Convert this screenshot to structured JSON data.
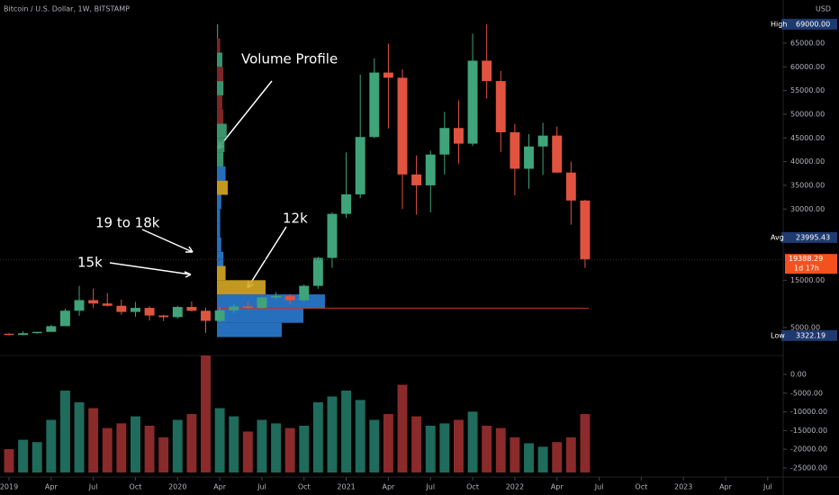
{
  "chart_data": {
    "type": "candlestick",
    "title": "Bitcoin / U.S. Dollar, 1W, BITSTAMP",
    "currency": "USD",
    "up_color": "#3fa47a",
    "down_color": "#e0533f",
    "x": [
      0,
      1,
      2,
      3,
      4,
      5,
      6,
      7,
      8,
      9,
      10,
      11,
      12,
      13,
      14,
      15,
      16,
      17,
      18,
      19,
      20,
      21,
      22,
      23,
      24,
      25,
      26,
      27,
      28,
      29,
      30,
      31,
      32,
      33,
      34,
      35,
      36,
      37,
      38,
      39,
      40,
      41
    ],
    "open": [
      3700,
      3440,
      3820,
      4100,
      5300,
      8560,
      10800,
      10080,
      9600,
      8300,
      9150,
      7550,
      7200,
      9350,
      8550,
      6420,
      8630,
      9450,
      9140,
      11350,
      11650,
      10780,
      13800,
      19700,
      28990,
      33100,
      45200,
      58800,
      57700,
      37300,
      35000,
      41500,
      47100,
      43800,
      61300,
      57000,
      46200,
      38500,
      43200,
      45500,
      37700,
      31800
    ],
    "high": [
      3800,
      4200,
      4100,
      5600,
      9000,
      13800,
      13200,
      12300,
      10900,
      10400,
      9500,
      7700,
      9600,
      10500,
      9200,
      9450,
      10070,
      10400,
      11450,
      12480,
      12070,
      14100,
      19900,
      29300,
      41950,
      58350,
      61780,
      64900,
      59500,
      41300,
      42300,
      50500,
      52900,
      67000,
      69000,
      59100,
      47950,
      45800,
      48200,
      47400,
      40000,
      31950
    ],
    "low": [
      3350,
      3400,
      3700,
      4100,
      5300,
      7500,
      9100,
      9400,
      7700,
      7300,
      6500,
      6400,
      6900,
      8400,
      3850,
      6150,
      8100,
      8900,
      8950,
      10950,
      9900,
      10500,
      13200,
      17600,
      28100,
      32300,
      44950,
      47000,
      30000,
      28800,
      29300,
      37300,
      39600,
      43300,
      53300,
      42000,
      32900,
      34300,
      37200,
      37600,
      26700,
      17600
    ],
    "close": [
      3440,
      3820,
      4100,
      5300,
      8560,
      10800,
      10080,
      9600,
      8300,
      9150,
      7550,
      7200,
      9350,
      8550,
      6420,
      8630,
      9450,
      9140,
      11350,
      11650,
      10780,
      13800,
      19700,
      28990,
      33100,
      45200,
      58800,
      57700,
      37300,
      35000,
      41500,
      47100,
      43800,
      61300,
      57000,
      46200,
      38500,
      43200,
      45500,
      37700,
      31800,
      19388
    ],
    "volume": {
      "up_color": "#1f6b5c",
      "down_color": "#8a2a2a",
      "vlim": [
        0,
        100
      ],
      "values": [
        20,
        28,
        26,
        45,
        70,
        60,
        55,
        38,
        42,
        48,
        40,
        30,
        45,
        50,
        100,
        55,
        48,
        35,
        45,
        42,
        38,
        40,
        60,
        65,
        70,
        62,
        45,
        50,
        75,
        48,
        40,
        42,
        45,
        52,
        40,
        38,
        30,
        25,
        22,
        26,
        30,
        50
      ]
    },
    "xlim": [
      -0.64,
      55.1
    ],
    "xticks": [
      {
        "value": 0,
        "label": "2019"
      },
      {
        "value": 3,
        "label": "Apr"
      },
      {
        "value": 6,
        "label": "Jul"
      },
      {
        "value": 9,
        "label": "Oct"
      },
      {
        "value": 12,
        "label": "2020"
      },
      {
        "value": 15,
        "label": "Apr"
      },
      {
        "value": 18,
        "label": "Jul"
      },
      {
        "value": 21,
        "label": "Oct"
      },
      {
        "value": 24,
        "label": "2021"
      },
      {
        "value": 27,
        "label": "Apr"
      },
      {
        "value": 30,
        "label": "Jul"
      },
      {
        "value": 33,
        "label": "Oct"
      },
      {
        "value": 36,
        "label": "2022"
      },
      {
        "value": 39,
        "label": "Apr"
      },
      {
        "value": 42,
        "label": "Jul"
      },
      {
        "value": 45,
        "label": "Oct"
      },
      {
        "value": 48,
        "label": "2023"
      },
      {
        "value": 51,
        "label": "Apr"
      },
      {
        "value": 54,
        "label": "Jul"
      }
    ],
    "ylim": [
      60,
      74100
    ],
    "yticks": [
      {
        "value": 5000,
        "label": "5000.00"
      },
      {
        "value": 15000,
        "label": "15000.00"
      },
      {
        "value": 30000,
        "label": "30000.00"
      },
      {
        "value": 35000,
        "label": "35000.00"
      },
      {
        "value": 40000,
        "label": "40000.00"
      },
      {
        "value": 45000,
        "label": "45000.00"
      },
      {
        "value": 50000,
        "label": "50000.00"
      },
      {
        "value": 55000,
        "label": "55000.00"
      },
      {
        "value": 60000,
        "label": "60000.00"
      },
      {
        "value": 65000,
        "label": "65000.00"
      }
    ],
    "y2lim": [
      -26200,
      0
    ],
    "y2ticks": [
      {
        "value": 0,
        "label": "0.00"
      },
      {
        "value": -5000,
        "label": "-5000.00"
      },
      {
        "value": -10000,
        "label": "-10000.00"
      },
      {
        "value": -15000,
        "label": "-15000.00"
      },
      {
        "value": -20000,
        "label": "-20000.00"
      },
      {
        "value": -25000,
        "label": "-25000.00"
      }
    ],
    "tags": [
      {
        "name": "High",
        "value": 69000,
        "text": "69000.00",
        "color": "#1e3a6e"
      },
      {
        "name": "Avg",
        "value": 23995.43,
        "text": "23995.43",
        "color": "#1e3a6e"
      },
      {
        "name": "Low",
        "value": 3322.19,
        "text": "3322.19",
        "color": "#1e3a6e"
      }
    ],
    "last_price": {
      "value": 19388.29,
      "text": "19388.29",
      "countdown": "1d 17h",
      "color": "#f4511e"
    },
    "volume_profile": {
      "start": 14.8,
      "xlim": [
        0,
        100
      ],
      "poc": 9100,
      "poc_color": "#c0392b",
      "bins": [
        3000,
        6000,
        9000,
        12000,
        15000,
        18000,
        21000,
        24000,
        27000,
        30000,
        33000,
        36000,
        39000,
        42000,
        45000,
        48000,
        51000,
        54000,
        57000,
        60000,
        63000,
        66000,
        69000
      ],
      "values": [
        60,
        80,
        100,
        45,
        8,
        6,
        4,
        3,
        3,
        4,
        10,
        8,
        6,
        7,
        9,
        6,
        5,
        6,
        6,
        5,
        3,
        1
      ],
      "colors": [
        "#2a7bd0",
        "#2a7bd0",
        "#2a7bd0",
        "#d6a823",
        "#d6a823",
        "#2a7bd0",
        "#2a7bd0",
        "#2a7bd0",
        "#2a7bd0",
        "#2a7bd0",
        "#d6a823",
        "#2a7bd0",
        "#3fa47a",
        "#3fa47a",
        "#3fa47a",
        "#8a2a2a",
        "#8a2a2a",
        "#3fa47a",
        "#8a2a2a",
        "#3fa47a",
        "#8a2a2a",
        "#3fa47a"
      ]
    },
    "annotations": [
      "Volume Profile",
      "19 to 18k",
      "15k",
      "12k"
    ]
  }
}
